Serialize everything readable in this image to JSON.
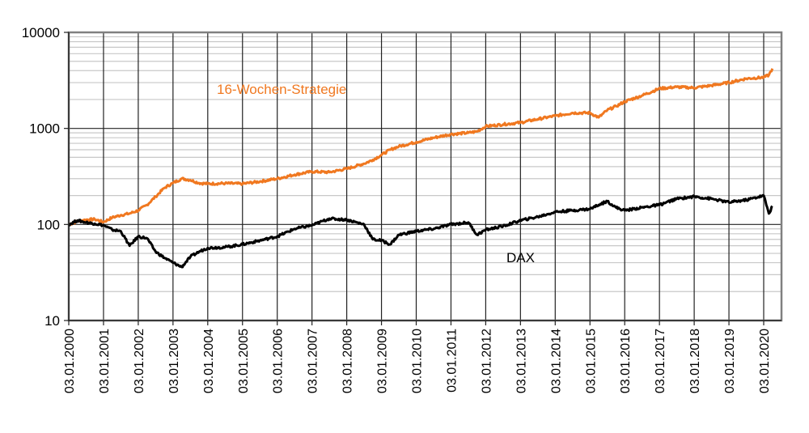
{
  "chart_data": {
    "type": "line",
    "title": "",
    "xlabel": "",
    "ylabel": "",
    "yscale": "log",
    "ylim": [
      10,
      10000
    ],
    "yticks": [
      "10",
      "100",
      "1000",
      "10000"
    ],
    "grid": true,
    "legend": "inline annotations",
    "x_tick_labels": [
      "03.01.2000",
      "03.01.2001",
      "03.01.2002",
      "03.01.2003",
      "03.01.2004",
      "03.01.2005",
      "03.01.2006",
      "03.01.2007",
      "03.01.2008",
      "03.01.2009",
      "03.01.2010",
      "03.01.2011",
      "03.01.2012",
      "03.01.2013",
      "03.01.2014",
      "03.01.2015",
      "03.01.2016",
      "03.01.2017",
      "03.01.2018",
      "03.01.2019",
      "03.01.2020"
    ],
    "x": [
      2000.0,
      2000.25,
      2000.5,
      2000.75,
      2001.0,
      2001.25,
      2001.5,
      2001.75,
      2002.0,
      2002.25,
      2002.5,
      2002.75,
      2003.0,
      2003.25,
      2003.5,
      2003.75,
      2004.0,
      2004.5,
      2005.0,
      2005.5,
      2006.0,
      2006.5,
      2007.0,
      2007.5,
      2008.0,
      2008.5,
      2008.75,
      2009.0,
      2009.25,
      2009.5,
      2010.0,
      2010.5,
      2011.0,
      2011.5,
      2011.75,
      2012.0,
      2012.5,
      2013.0,
      2013.5,
      2014.0,
      2014.5,
      2015.0,
      2015.25,
      2015.5,
      2015.75,
      2016.0,
      2016.5,
      2017.0,
      2017.5,
      2018.0,
      2018.5,
      2019.0,
      2019.5,
      2020.0,
      2020.15,
      2020.25
    ],
    "series": [
      {
        "name": "16-Wochen-Strategie",
        "color": "#F07820",
        "values": [
          100,
          108,
          112,
          113,
          106,
          118,
          125,
          130,
          140,
          160,
          195,
          240,
          270,
          300,
          290,
          270,
          265,
          268,
          265,
          280,
          300,
          330,
          355,
          350,
          380,
          430,
          470,
          530,
          600,
          650,
          720,
          800,
          870,
          900,
          930,
          1050,
          1100,
          1150,
          1250,
          1350,
          1450,
          1450,
          1300,
          1550,
          1700,
          1900,
          2200,
          2600,
          2700,
          2650,
          2800,
          3000,
          3300,
          3400,
          3600,
          4200
        ]
      },
      {
        "name": "DAX",
        "color": "#000000",
        "values": [
          100,
          110,
          105,
          102,
          98,
          88,
          85,
          60,
          75,
          72,
          52,
          45,
          40,
          36,
          46,
          52,
          57,
          58,
          62,
          68,
          75,
          90,
          98,
          115,
          112,
          100,
          70,
          68,
          62,
          78,
          85,
          90,
          100,
          105,
          78,
          88,
          96,
          110,
          120,
          135,
          140,
          145,
          160,
          175,
          150,
          140,
          150,
          160,
          185,
          195,
          185,
          170,
          180,
          200,
          130,
          155
        ]
      }
    ],
    "annotations": [
      {
        "text": "16-Wochen-Strategie",
        "color": "#F07820"
      },
      {
        "text": "DAX",
        "color": "#000000"
      }
    ]
  }
}
